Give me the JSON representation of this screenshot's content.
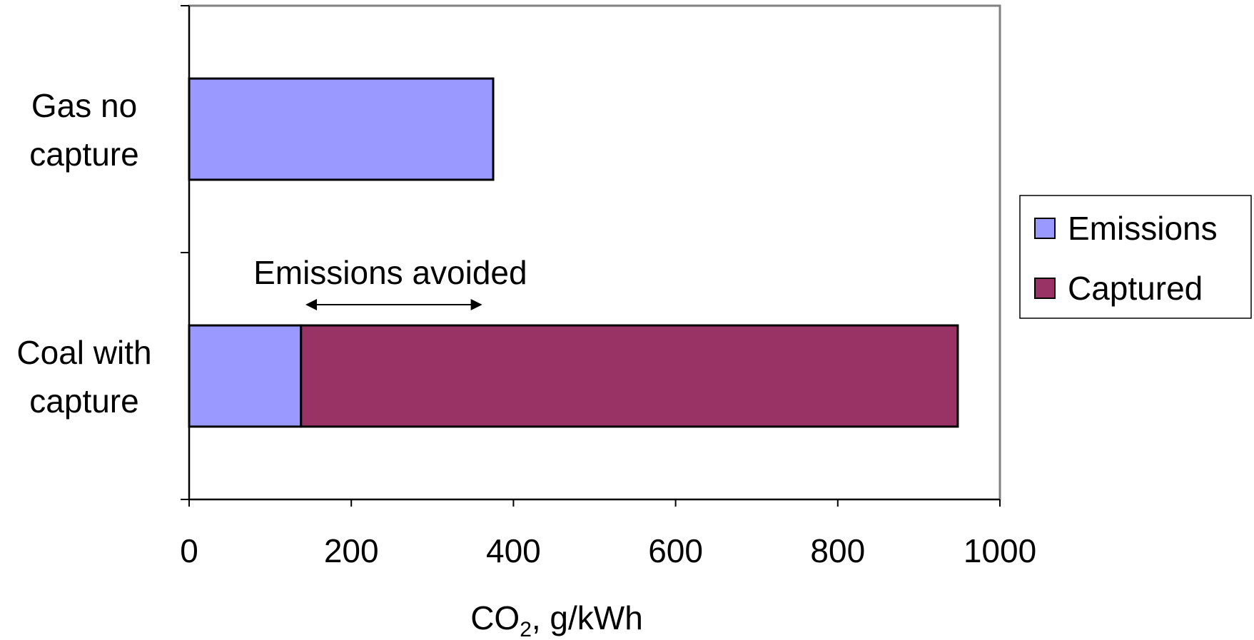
{
  "chart_data": {
    "type": "bar",
    "orientation": "horizontal",
    "stacked": true,
    "categories": [
      "Gas no capture",
      "Coal with capture"
    ],
    "category_lines": [
      [
        "Gas no",
        "capture"
      ],
      [
        "Coal with",
        "capture"
      ]
    ],
    "series": [
      {
        "name": "Emissions",
        "color": "#9999ff",
        "values": [
          375,
          138
        ]
      },
      {
        "name": "Captured",
        "color": "#993366",
        "values": [
          0,
          810
        ]
      }
    ],
    "xlim": [
      0,
      1000
    ],
    "xticks": [
      "0",
      "200",
      "400",
      "600",
      "800",
      "1000"
    ],
    "xlabel": {
      "main": "CO",
      "sub": "2",
      "rest": ", g/kWh"
    },
    "annotation": {
      "text": "Emissions avoided",
      "from": 140,
      "to": 365
    },
    "legend_position": "right",
    "grid": false
  }
}
